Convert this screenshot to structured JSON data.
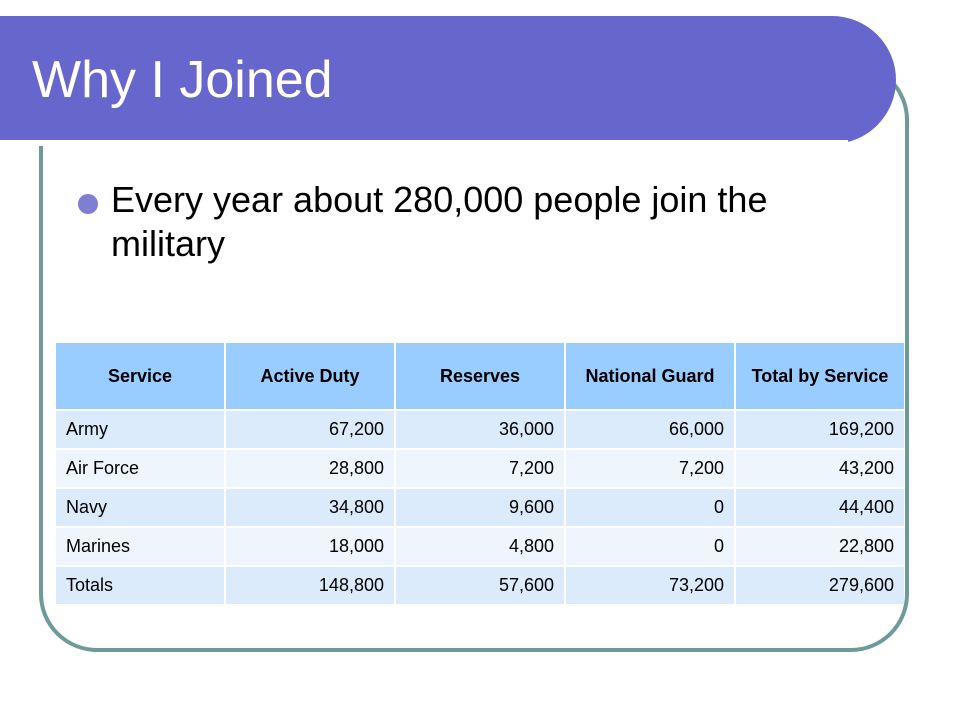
{
  "slide": {
    "title": "Why I Joined",
    "bullet": "Every year about 280,000 people join the military"
  },
  "table": {
    "headers": [
      "Service",
      "Active Duty",
      "Reserves",
      "National Guard",
      "Total by Service"
    ],
    "rows": [
      [
        "Army",
        "67,200",
        "36,000",
        "66,000",
        "169,200"
      ],
      [
        "Air Force",
        "28,800",
        "7,200",
        "7,200",
        "43,200"
      ],
      [
        "Navy",
        "34,800",
        "9,600",
        "0",
        "44,400"
      ],
      [
        "Marines",
        "18,000",
        "4,800",
        "0",
        "22,800"
      ],
      [
        "Totals",
        "148,800",
        "57,600",
        "73,200",
        "279,600"
      ]
    ]
  },
  "colors": {
    "title_bar": "#6666cc",
    "frame_border": "#6f9a9a",
    "bullet": "#7e7ed2",
    "table_header": "#99ccff",
    "table_row_odd": "#dcebfb",
    "table_row_even": "#eef5fd"
  }
}
